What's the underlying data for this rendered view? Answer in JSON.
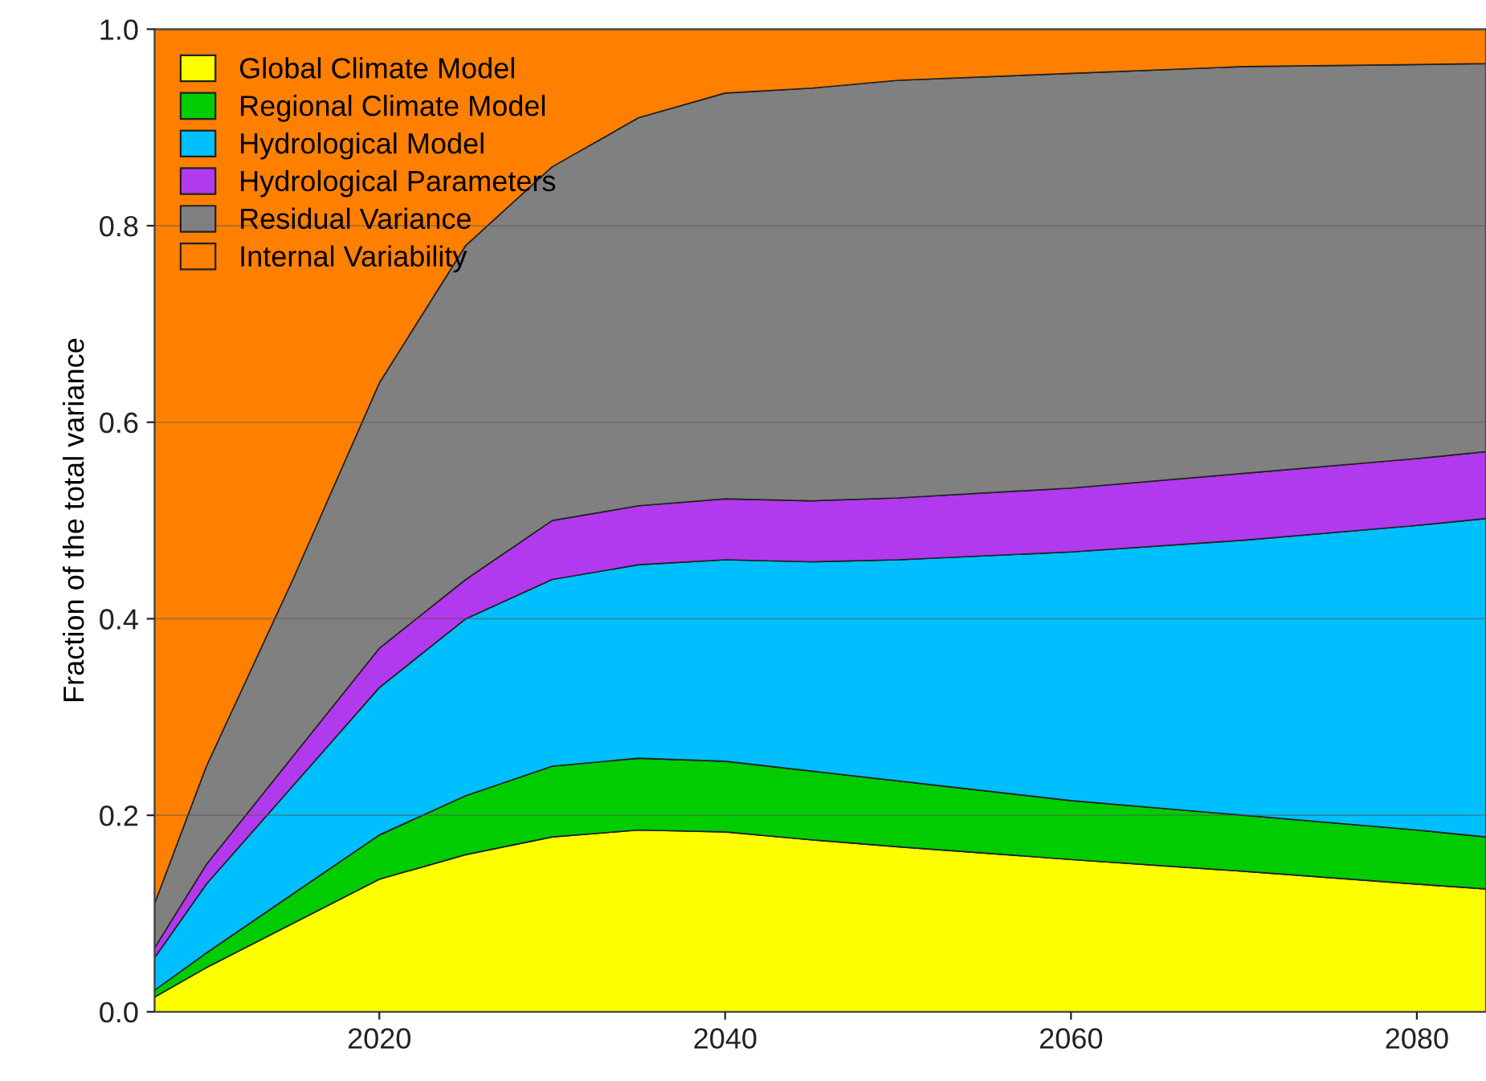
{
  "chart_data": {
    "type": "area",
    "stacked": true,
    "ylabel": "Fraction of the total variance",
    "x": [
      2007,
      2010,
      2015,
      2020,
      2025,
      2030,
      2035,
      2040,
      2045,
      2050,
      2060,
      2070,
      2080,
      2084
    ],
    "series": [
      {
        "name": "Global Climate Model",
        "color": "#ffff00",
        "values": [
          0.015,
          0.045,
          0.09,
          0.135,
          0.16,
          0.178,
          0.185,
          0.183,
          0.175,
          0.168,
          0.155,
          0.143,
          0.13,
          0.125
        ]
      },
      {
        "name": "Regional Climate Model",
        "color": "#00cc00",
        "values": [
          0.007,
          0.015,
          0.03,
          0.045,
          0.06,
          0.072,
          0.073,
          0.072,
          0.07,
          0.067,
          0.06,
          0.057,
          0.055,
          0.053
        ]
      },
      {
        "name": "Hydrological Model",
        "color": "#00bfff",
        "values": [
          0.033,
          0.07,
          0.11,
          0.15,
          0.18,
          0.19,
          0.197,
          0.205,
          0.213,
          0.225,
          0.253,
          0.28,
          0.31,
          0.324
        ]
      },
      {
        "name": "Hydrological Parameters",
        "color": "#b23aee",
        "values": [
          0.01,
          0.02,
          0.03,
          0.04,
          0.04,
          0.06,
          0.06,
          0.062,
          0.062,
          0.063,
          0.065,
          0.068,
          0.068,
          0.068
        ]
      },
      {
        "name": "Residual Variance",
        "color": "#808080",
        "values": [
          0.045,
          0.1,
          0.18,
          0.27,
          0.34,
          0.36,
          0.395,
          0.413,
          0.42,
          0.425,
          0.422,
          0.414,
          0.401,
          0.395
        ]
      },
      {
        "name": "Internal Variability",
        "color": "#ff8000",
        "values": [
          0.89,
          0.75,
          0.56,
          0.36,
          0.22,
          0.14,
          0.09,
          0.065,
          0.06,
          0.052,
          0.045,
          0.038,
          0.036,
          0.035
        ]
      }
    ],
    "xlim": [
      2007,
      2084
    ],
    "xticks": [
      2020,
      2040,
      2060,
      2080
    ],
    "ylim": [
      0,
      1
    ],
    "yticks": [
      {
        "value": 0,
        "label": "0.0"
      },
      {
        "value": 0.2,
        "label": "0.2"
      },
      {
        "value": 0.4,
        "label": "0.4"
      },
      {
        "value": 0.6,
        "label": "0.6"
      },
      {
        "value": 0.8,
        "label": "0.8"
      },
      {
        "value": 1,
        "label": "1.0"
      }
    ],
    "grid": "y",
    "legend": "top left"
  }
}
